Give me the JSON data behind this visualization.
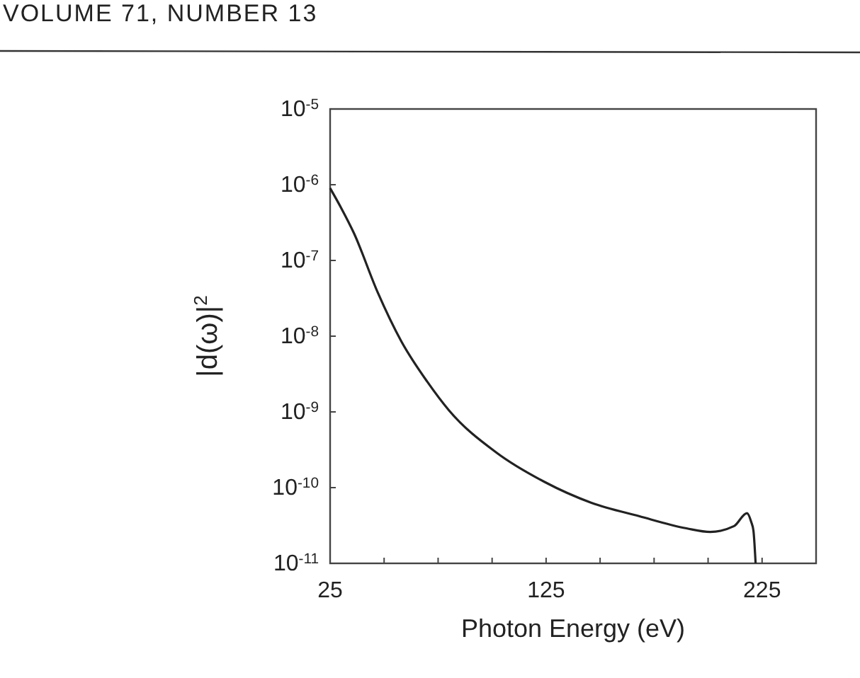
{
  "chart_data": {
    "type": "line",
    "xlabel": "Photon Energy (eV)",
    "ylabel": "|d(ω)|$^{2}$",
    "annotations": [
      "VOLUME 71, NUMBER 13"
    ],
    "log": "y",
    "grid": false,
    "line_style": "solid",
    "marker": "none",
    "xlim": [
      25,
      250
    ],
    "xticks": [
      25,
      {
        "value": 50,
        "label": null
      },
      {
        "value": 75,
        "label": null
      },
      {
        "value": 100,
        "label": null
      },
      125,
      {
        "value": 150,
        "label": null
      },
      {
        "value": 175,
        "label": null
      },
      {
        "value": 200,
        "label": null
      },
      225
    ],
    "ylim": [
      1e-11,
      1e-05
    ],
    "yticks": [
      {
        "value": 1e-11,
        "label": "10$^{-11}$"
      },
      {
        "value": 1e-10,
        "label": "10$^{-10}$"
      },
      {
        "value": 1e-09,
        "label": "10$^{-9}$"
      },
      {
        "value": 1e-08,
        "label": "10$^{-8}$"
      },
      {
        "value": 1e-07,
        "label": "10$^{-7}$"
      },
      {
        "value": 1e-06,
        "label": "10$^{-6}$"
      },
      {
        "value": 1e-05,
        "label": "10$^{-5}$"
      }
    ],
    "x": [
      25,
      30,
      36,
      47,
      58,
      70,
      80,
      102,
      124,
      146,
      168,
      190,
      201,
      212,
      218,
      220,
      221,
      222
    ],
    "series": [
      {
        "color": "#222222",
        "values": [
          9e-07,
          5e-07,
          2.3e-07,
          3.8e-08,
          8.5e-09,
          2.5e-09,
          1.05e-09,
          2.9e-10,
          1.2e-10,
          6.3e-11,
          4.2e-11,
          2.9e-11,
          2.6e-11,
          3.1e-11,
          4.6e-11,
          3.5e-11,
          2.7e-11,
          1e-11
        ]
      }
    ]
  }
}
